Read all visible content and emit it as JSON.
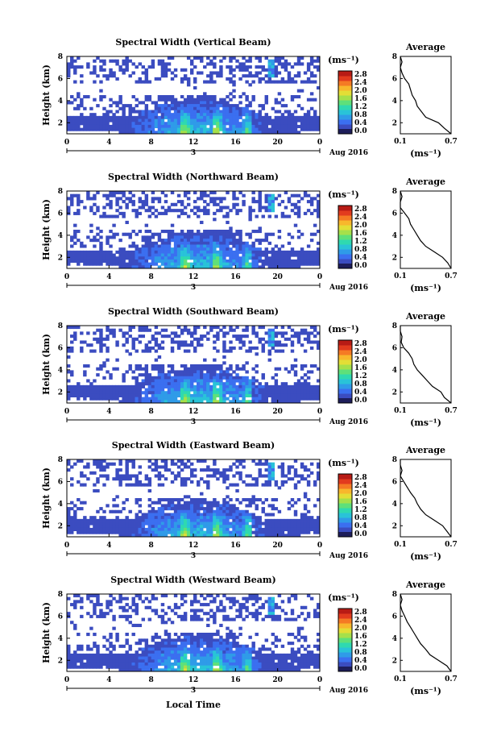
{
  "figure": {
    "xlabel_bottom": "Local Time"
  },
  "colormap": {
    "colors": [
      "#2a2a6e",
      "#3b4cc0",
      "#3b6ff0",
      "#2f9be8",
      "#29c3d8",
      "#2fd9b0",
      "#5ee07a",
      "#a6e04a",
      "#e3de36",
      "#f8b72c",
      "#f57a24",
      "#e23b1e",
      "#b81b15"
    ],
    "noise": "#1d1d5a"
  },
  "chart_data": [
    {
      "type": "heatmap",
      "title": "Spectral Width (Vertical Beam)",
      "xlabel": "Local Time",
      "ylabel": "Height (km)",
      "xlim": [
        0,
        24
      ],
      "ylim": [
        1,
        8
      ],
      "xticks": [
        "0",
        "4",
        "8",
        "12",
        "16",
        "20",
        "0"
      ],
      "yticks": [
        "8",
        "6",
        "4",
        "2"
      ],
      "date_label": "Aug 2016",
      "day_label": "3",
      "colorbar": {
        "unit": "(ms⁻¹)",
        "ticks": [
          "2.8",
          "2.4",
          "2.0",
          "1.6",
          "1.2",
          "0.8",
          "0.4",
          "0.0"
        ],
        "range": [
          0,
          2.8
        ]
      },
      "profile": {
        "title": "Average",
        "xlabel": "(ms⁻¹)",
        "xticks": [
          "0.1",
          "0.7"
        ],
        "xlim": [
          0.1,
          0.7
        ],
        "yticks": [
          "8",
          "6",
          "4",
          "2"
        ],
        "ylim": [
          1,
          8
        ],
        "height": [
          1.0,
          1.5,
          2.0,
          2.5,
          3.0,
          3.5,
          4.0,
          4.5,
          5.0,
          5.5,
          6.0,
          6.5,
          7.0,
          7.5,
          8.0
        ],
        "width": [
          0.7,
          0.62,
          0.55,
          0.4,
          0.35,
          0.3,
          0.28,
          0.24,
          0.22,
          0.2,
          0.15,
          0.12,
          0.1,
          0.12,
          0.1
        ]
      }
    },
    {
      "type": "heatmap",
      "title": "Spectral Width (Northward Beam)",
      "xlabel": "Local Time",
      "ylabel": "Height (km)",
      "xlim": [
        0,
        24
      ],
      "ylim": [
        1,
        8
      ],
      "xticks": [
        "0",
        "4",
        "8",
        "12",
        "16",
        "20",
        "0"
      ],
      "yticks": [
        "8",
        "6",
        "4",
        "2"
      ],
      "date_label": "Aug 2016",
      "day_label": "3",
      "colorbar": {
        "unit": "(ms⁻¹)",
        "ticks": [
          "2.8",
          "2.4",
          "2.0",
          "1.6",
          "1.2",
          "0.8",
          "0.4",
          "0.0"
        ],
        "range": [
          0,
          2.8
        ]
      },
      "profile": {
        "title": "Average",
        "xlabel": "(ms⁻¹)",
        "xticks": [
          "0.1",
          "0.7"
        ],
        "xlim": [
          0.1,
          0.7
        ],
        "yticks": [
          "8",
          "6",
          "4",
          "2"
        ],
        "ylim": [
          1,
          8
        ],
        "height": [
          1.0,
          1.5,
          2.0,
          2.5,
          3.0,
          3.5,
          4.0,
          4.5,
          5.0,
          5.5,
          6.0,
          6.5,
          7.0,
          7.5,
          8.0
        ],
        "width": [
          0.7,
          0.66,
          0.6,
          0.5,
          0.4,
          0.34,
          0.3,
          0.26,
          0.22,
          0.2,
          0.15,
          0.1,
          0.1,
          0.12,
          0.1
        ]
      }
    },
    {
      "type": "heatmap",
      "title": "Spectral Width (Southward Beam)",
      "xlabel": "Local Time",
      "ylabel": "Height (km)",
      "xlim": [
        0,
        24
      ],
      "ylim": [
        1,
        8
      ],
      "xticks": [
        "0",
        "4",
        "8",
        "12",
        "16",
        "20",
        "0"
      ],
      "yticks": [
        "8",
        "6",
        "4",
        "2"
      ],
      "date_label": "Aug 2016",
      "day_label": "3",
      "colorbar": {
        "unit": "(ms⁻¹)",
        "ticks": [
          "2.8",
          "2.4",
          "2.0",
          "1.6",
          "1.2",
          "0.8",
          "0.4",
          "0.0"
        ],
        "range": [
          0,
          2.8
        ]
      },
      "profile": {
        "title": "Average",
        "xlabel": "(ms⁻¹)",
        "xticks": [
          "0.1",
          "0.7"
        ],
        "xlim": [
          0.1,
          0.7
        ],
        "yticks": [
          "8",
          "6",
          "4",
          "2"
        ],
        "ylim": [
          1,
          8
        ],
        "height": [
          1.0,
          1.5,
          2.0,
          2.5,
          3.0,
          3.5,
          4.0,
          4.5,
          5.0,
          5.5,
          6.0,
          6.5,
          7.0,
          7.5,
          8.0
        ],
        "width": [
          0.7,
          0.62,
          0.58,
          0.48,
          0.42,
          0.36,
          0.3,
          0.26,
          0.24,
          0.2,
          0.14,
          0.11,
          0.12,
          0.1,
          0.1
        ]
      }
    },
    {
      "type": "heatmap",
      "title": "Spectral Width (Eastward Beam)",
      "xlabel": "Local Time",
      "ylabel": "Height (km)",
      "xlim": [
        0,
        24
      ],
      "ylim": [
        1,
        8
      ],
      "xticks": [
        "0",
        "4",
        "8",
        "12",
        "16",
        "20",
        "0"
      ],
      "yticks": [
        "8",
        "6",
        "4",
        "2"
      ],
      "date_label": "Aug 2016",
      "day_label": "3",
      "colorbar": {
        "unit": "(ms⁻¹)",
        "ticks": [
          "2.8",
          "2.4",
          "2.0",
          "1.6",
          "1.2",
          "0.8",
          "0.4",
          "0.0"
        ],
        "range": [
          0,
          2.8
        ]
      },
      "profile": {
        "title": "Average",
        "xlabel": "(ms⁻¹)",
        "xticks": [
          "0.1",
          "0.7"
        ],
        "xlim": [
          0.1,
          0.7
        ],
        "yticks": [
          "8",
          "6",
          "4",
          "2"
        ],
        "ylim": [
          1,
          8
        ],
        "height": [
          1.0,
          1.5,
          2.0,
          2.5,
          3.0,
          3.5,
          4.0,
          4.5,
          5.0,
          5.5,
          6.0,
          6.5,
          7.0,
          7.5,
          8.0
        ],
        "width": [
          0.7,
          0.65,
          0.6,
          0.5,
          0.4,
          0.34,
          0.3,
          0.27,
          0.22,
          0.18,
          0.14,
          0.1,
          0.12,
          0.1,
          0.1
        ]
      }
    },
    {
      "type": "heatmap",
      "title": "Spectral Width (Westward Beam)",
      "xlabel": "Local Time",
      "ylabel": "Height (km)",
      "xlim": [
        0,
        24
      ],
      "ylim": [
        1,
        8
      ],
      "xticks": [
        "0",
        "4",
        "8",
        "12",
        "16",
        "20",
        "0"
      ],
      "yticks": [
        "8",
        "6",
        "4",
        "2"
      ],
      "date_label": "Aug 2016",
      "day_label": "3",
      "colorbar": {
        "unit": "(ms⁻¹)",
        "ticks": [
          "2.8",
          "2.4",
          "2.0",
          "1.6",
          "1.2",
          "0.8",
          "0.4",
          "0.0"
        ],
        "range": [
          0,
          2.8
        ]
      },
      "profile": {
        "title": "Average",
        "xlabel": "(ms⁻¹)",
        "xticks": [
          "0.1",
          "0.7"
        ],
        "xlim": [
          0.1,
          0.7
        ],
        "yticks": [
          "8",
          "6",
          "4",
          "2"
        ],
        "ylim": [
          1,
          8
        ],
        "height": [
          1.0,
          1.5,
          2.0,
          2.5,
          3.0,
          3.5,
          4.0,
          4.5,
          5.0,
          5.5,
          6.0,
          6.5,
          7.0,
          7.5,
          8.0
        ],
        "width": [
          0.7,
          0.65,
          0.55,
          0.45,
          0.4,
          0.34,
          0.3,
          0.26,
          0.22,
          0.18,
          0.15,
          0.12,
          0.1,
          0.12,
          0.1
        ]
      }
    }
  ]
}
